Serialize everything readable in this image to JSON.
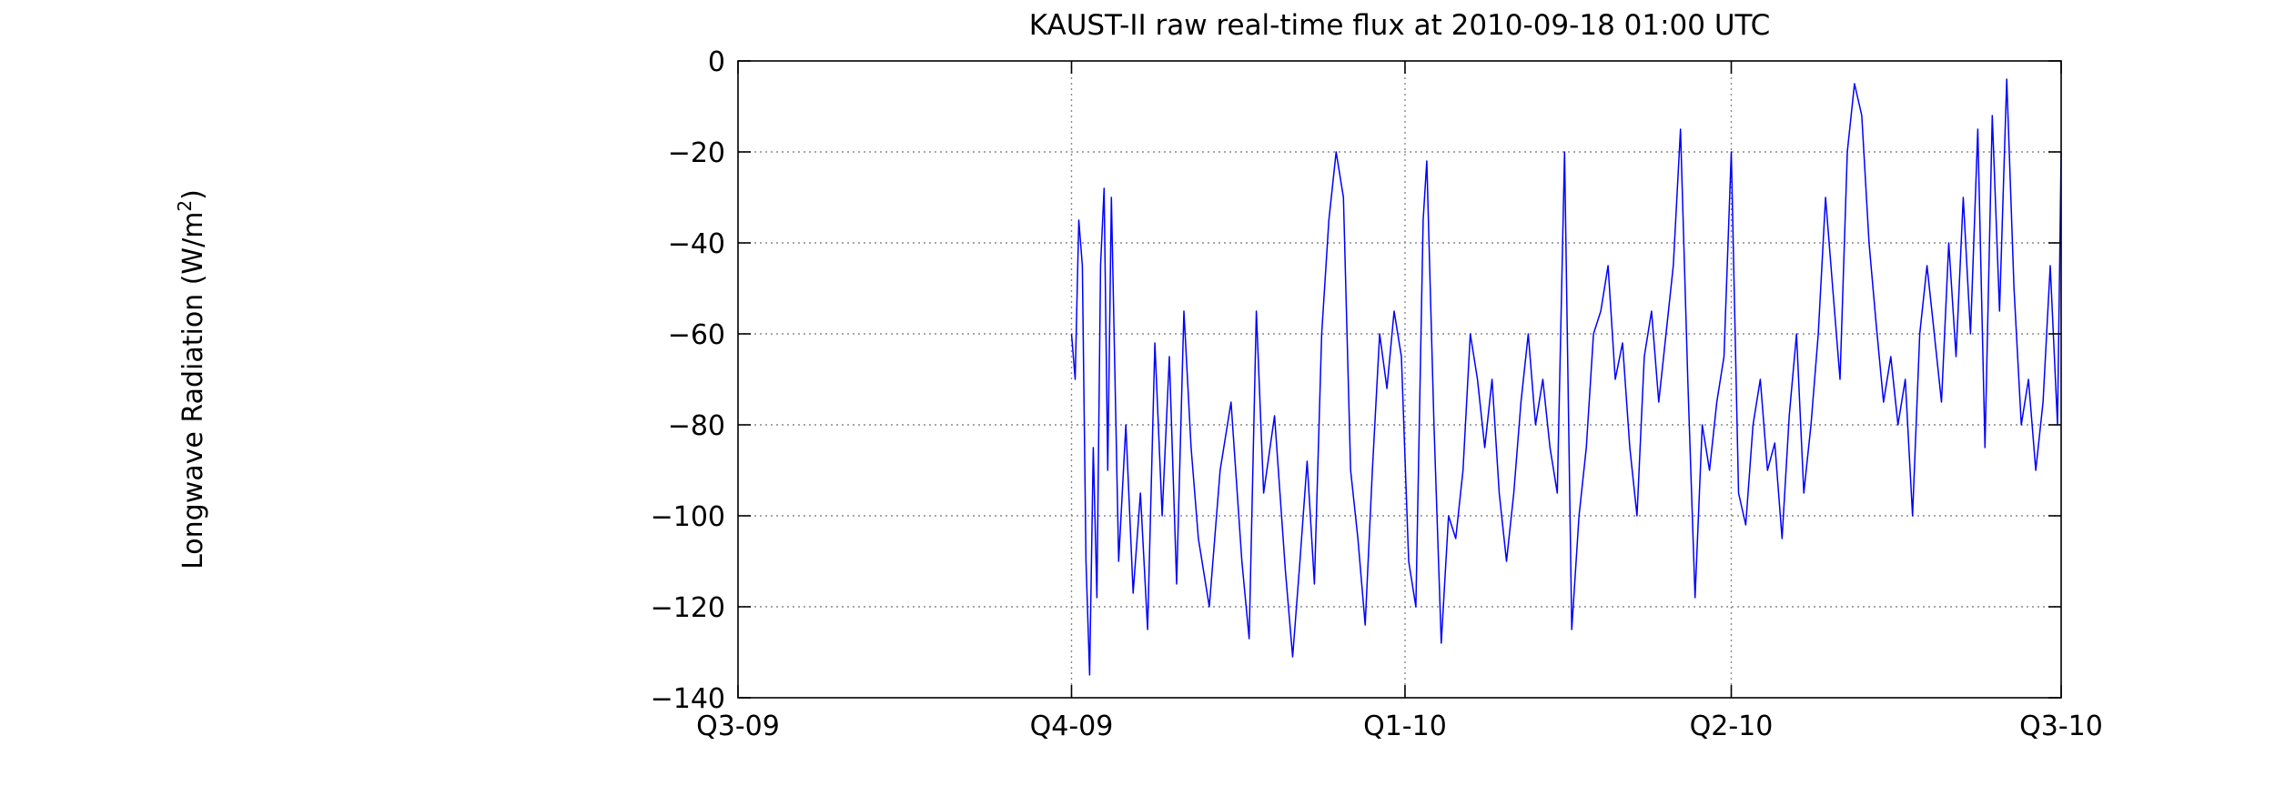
{
  "chart_data": {
    "type": "line",
    "title": "KAUST-II raw real-time flux at 2010-09-18 01:00 UTC",
    "ylabel_main": "Longwave Radiation (W/m",
    "ylabel_sup": "2",
    "ylabel_close": ")",
    "xlabel": "",
    "xlim": [
      "2009-07-01",
      "2010-07-01"
    ],
    "ylim": [
      -140,
      0
    ],
    "x_ticks": [
      {
        "date": "2009-07-01",
        "label": "Q3-09"
      },
      {
        "date": "2009-10-01",
        "label": "Q4-09"
      },
      {
        "date": "2010-01-01",
        "label": "Q1-10"
      },
      {
        "date": "2010-04-01",
        "label": "Q2-10"
      },
      {
        "date": "2010-07-01",
        "label": "Q3-10"
      }
    ],
    "y_ticks": [
      0,
      -20,
      -40,
      -60,
      -80,
      -100,
      -120,
      -140
    ],
    "grid": true,
    "color": "#0000ff",
    "series": [
      {
        "values": [
          [
            "2009-10-01",
            -60
          ],
          [
            "2009-10-02",
            -70
          ],
          [
            "2009-10-03",
            -35
          ],
          [
            "2009-10-04",
            -45
          ],
          [
            "2009-10-05",
            -110
          ],
          [
            "2009-10-06",
            -135
          ],
          [
            "2009-10-07",
            -85
          ],
          [
            "2009-10-08",
            -118
          ],
          [
            "2009-10-09",
            -45
          ],
          [
            "2009-10-10",
            -28
          ],
          [
            "2009-10-11",
            -90
          ],
          [
            "2009-10-12",
            -30
          ],
          [
            "2009-10-14",
            -110
          ],
          [
            "2009-10-16",
            -80
          ],
          [
            "2009-10-18",
            -117
          ],
          [
            "2009-10-20",
            -95
          ],
          [
            "2009-10-22",
            -125
          ],
          [
            "2009-10-24",
            -62
          ],
          [
            "2009-10-26",
            -100
          ],
          [
            "2009-10-28",
            -65
          ],
          [
            "2009-10-30",
            -115
          ],
          [
            "2009-11-01",
            -55
          ],
          [
            "2009-11-03",
            -85
          ],
          [
            "2009-11-05",
            -105
          ],
          [
            "2009-11-08",
            -120
          ],
          [
            "2009-11-11",
            -90
          ],
          [
            "2009-11-14",
            -75
          ],
          [
            "2009-11-17",
            -110
          ],
          [
            "2009-11-19",
            -127
          ],
          [
            "2009-11-21",
            -55
          ],
          [
            "2009-11-23",
            -95
          ],
          [
            "2009-11-26",
            -78
          ],
          [
            "2009-11-29",
            -112
          ],
          [
            "2009-12-01",
            -131
          ],
          [
            "2009-12-03",
            -110
          ],
          [
            "2009-12-05",
            -88
          ],
          [
            "2009-12-07",
            -115
          ],
          [
            "2009-12-09",
            -60
          ],
          [
            "2009-12-11",
            -35
          ],
          [
            "2009-12-13",
            -20
          ],
          [
            "2009-12-15",
            -30
          ],
          [
            "2009-12-17",
            -90
          ],
          [
            "2009-12-19",
            -105
          ],
          [
            "2009-12-21",
            -124
          ],
          [
            "2009-12-23",
            -90
          ],
          [
            "2009-12-25",
            -60
          ],
          [
            "2009-12-27",
            -72
          ],
          [
            "2009-12-29",
            -55
          ],
          [
            "2009-12-31",
            -65
          ],
          [
            "2010-01-02",
            -110
          ],
          [
            "2010-01-04",
            -120
          ],
          [
            "2010-01-06",
            -35
          ],
          [
            "2010-01-07",
            -22
          ],
          [
            "2010-01-09",
            -80
          ],
          [
            "2010-01-11",
            -128
          ],
          [
            "2010-01-13",
            -100
          ],
          [
            "2010-01-15",
            -105
          ],
          [
            "2010-01-17",
            -90
          ],
          [
            "2010-01-19",
            -60
          ],
          [
            "2010-01-21",
            -70
          ],
          [
            "2010-01-23",
            -85
          ],
          [
            "2010-01-25",
            -70
          ],
          [
            "2010-01-27",
            -95
          ],
          [
            "2010-01-29",
            -110
          ],
          [
            "2010-01-31",
            -95
          ],
          [
            "2010-02-02",
            -75
          ],
          [
            "2010-02-04",
            -60
          ],
          [
            "2010-02-06",
            -80
          ],
          [
            "2010-02-08",
            -70
          ],
          [
            "2010-02-10",
            -85
          ],
          [
            "2010-02-12",
            -95
          ],
          [
            "2010-02-14",
            -20
          ],
          [
            "2010-02-16",
            -125
          ],
          [
            "2010-02-18",
            -100
          ],
          [
            "2010-02-20",
            -85
          ],
          [
            "2010-02-22",
            -60
          ],
          [
            "2010-02-24",
            -55
          ],
          [
            "2010-02-26",
            -45
          ],
          [
            "2010-02-28",
            -70
          ],
          [
            "2010-03-02",
            -62
          ],
          [
            "2010-03-04",
            -85
          ],
          [
            "2010-03-06",
            -100
          ],
          [
            "2010-03-08",
            -65
          ],
          [
            "2010-03-10",
            -55
          ],
          [
            "2010-03-12",
            -75
          ],
          [
            "2010-03-14",
            -60
          ],
          [
            "2010-03-16",
            -45
          ],
          [
            "2010-03-18",
            -15
          ],
          [
            "2010-03-20",
            -70
          ],
          [
            "2010-03-22",
            -118
          ],
          [
            "2010-03-24",
            -80
          ],
          [
            "2010-03-26",
            -90
          ],
          [
            "2010-03-28",
            -75
          ],
          [
            "2010-03-30",
            -65
          ],
          [
            "2010-04-01",
            -20
          ],
          [
            "2010-04-03",
            -95
          ],
          [
            "2010-04-05",
            -102
          ],
          [
            "2010-04-07",
            -80
          ],
          [
            "2010-04-09",
            -70
          ],
          [
            "2010-04-11",
            -90
          ],
          [
            "2010-04-13",
            -84
          ],
          [
            "2010-04-15",
            -105
          ],
          [
            "2010-04-17",
            -78
          ],
          [
            "2010-04-19",
            -60
          ],
          [
            "2010-04-21",
            -95
          ],
          [
            "2010-04-23",
            -80
          ],
          [
            "2010-04-25",
            -60
          ],
          [
            "2010-04-27",
            -30
          ],
          [
            "2010-04-29",
            -50
          ],
          [
            "2010-05-01",
            -70
          ],
          [
            "2010-05-03",
            -20
          ],
          [
            "2010-05-05",
            -5
          ],
          [
            "2010-05-07",
            -12
          ],
          [
            "2010-05-09",
            -40
          ],
          [
            "2010-05-11",
            -58
          ],
          [
            "2010-05-13",
            -75
          ],
          [
            "2010-05-15",
            -65
          ],
          [
            "2010-05-17",
            -80
          ],
          [
            "2010-05-19",
            -70
          ],
          [
            "2010-05-21",
            -100
          ],
          [
            "2010-05-23",
            -60
          ],
          [
            "2010-05-25",
            -45
          ],
          [
            "2010-05-27",
            -60
          ],
          [
            "2010-05-29",
            -75
          ],
          [
            "2010-05-31",
            -40
          ],
          [
            "2010-06-02",
            -65
          ],
          [
            "2010-06-04",
            -30
          ],
          [
            "2010-06-06",
            -60
          ],
          [
            "2010-06-08",
            -15
          ],
          [
            "2010-06-10",
            -85
          ],
          [
            "2010-06-12",
            -12
          ],
          [
            "2010-06-14",
            -55
          ],
          [
            "2010-06-16",
            -4
          ],
          [
            "2010-06-18",
            -50
          ],
          [
            "2010-06-20",
            -80
          ],
          [
            "2010-06-22",
            -70
          ],
          [
            "2010-06-24",
            -90
          ],
          [
            "2010-06-26",
            -75
          ],
          [
            "2010-06-28",
            -45
          ],
          [
            "2010-06-30",
            -80
          ],
          [
            "2010-07-01",
            -20
          ]
        ]
      }
    ]
  }
}
